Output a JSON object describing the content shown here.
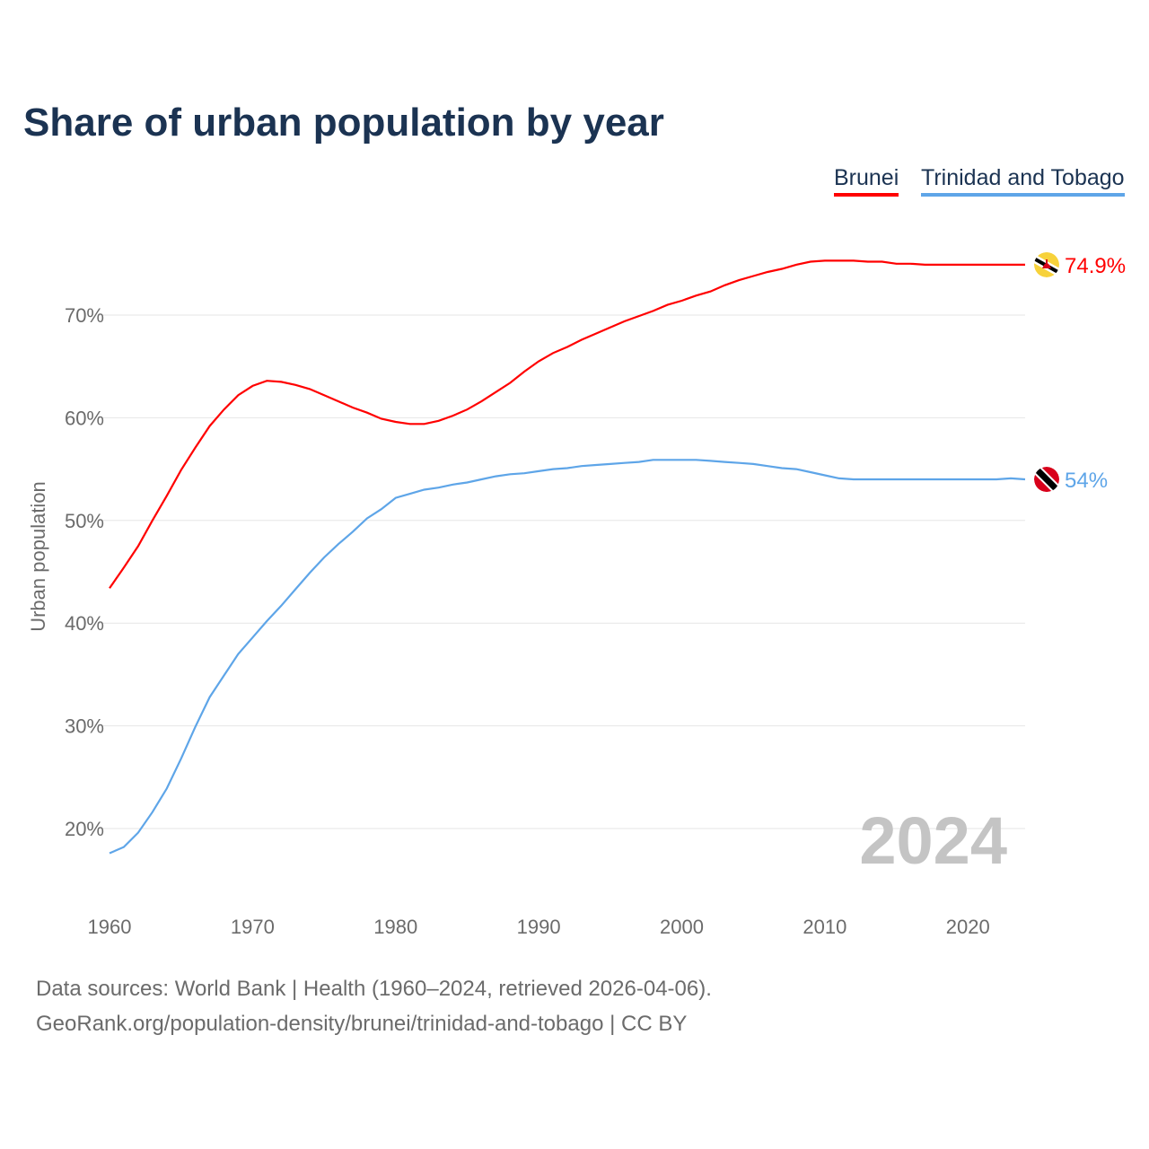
{
  "chart_data": {
    "type": "line",
    "title": "Share of urban population by year",
    "ylabel": "Urban population",
    "xlabel": "",
    "xlim": [
      1960,
      2024
    ],
    "ylim": [
      15,
      77
    ],
    "xticks": [
      1960,
      1970,
      1980,
      1990,
      2000,
      2010,
      2020
    ],
    "yticks": [
      {
        "v": 20,
        "label": "20%"
      },
      {
        "v": 30,
        "label": "30%"
      },
      {
        "v": 40,
        "label": "40%"
      },
      {
        "v": 50,
        "label": "50%"
      },
      {
        "v": 60,
        "label": "60%"
      },
      {
        "v": 70,
        "label": "70%"
      }
    ],
    "grid": true,
    "legend_position": "top-right",
    "year_label": "2024",
    "x": [
      1960,
      1961,
      1962,
      1963,
      1964,
      1965,
      1966,
      1967,
      1968,
      1969,
      1970,
      1971,
      1972,
      1973,
      1974,
      1975,
      1976,
      1977,
      1978,
      1979,
      1980,
      1981,
      1982,
      1983,
      1984,
      1985,
      1986,
      1987,
      1988,
      1989,
      1990,
      1991,
      1992,
      1993,
      1994,
      1995,
      1996,
      1997,
      1998,
      1999,
      2000,
      2001,
      2002,
      2003,
      2004,
      2005,
      2006,
      2007,
      2008,
      2009,
      2010,
      2011,
      2012,
      2013,
      2014,
      2015,
      2016,
      2017,
      2018,
      2019,
      2020,
      2021,
      2022,
      2023,
      2024
    ],
    "series": [
      {
        "name": "Brunei",
        "color": "#ff0000",
        "end_label": "74.9%",
        "flag": "brunei-flag",
        "values": [
          43.4,
          45.4,
          47.5,
          50.0,
          52.4,
          54.9,
          57.1,
          59.2,
          60.8,
          62.2,
          63.1,
          63.6,
          63.5,
          63.2,
          62.8,
          62.2,
          61.6,
          61.0,
          60.5,
          59.9,
          59.6,
          59.4,
          59.4,
          59.7,
          60.2,
          60.8,
          61.6,
          62.5,
          63.4,
          64.5,
          65.5,
          66.3,
          66.9,
          67.6,
          68.2,
          68.8,
          69.4,
          69.9,
          70.4,
          71.0,
          71.4,
          71.9,
          72.3,
          72.9,
          73.4,
          73.8,
          74.2,
          74.5,
          74.9,
          75.2,
          75.3,
          75.3,
          75.3,
          75.2,
          75.2,
          75.0,
          75.0,
          74.9,
          74.9,
          74.9,
          74.9,
          74.9,
          74.9,
          74.9,
          74.9
        ]
      },
      {
        "name": "Trinidad and Tobago",
        "color": "#5ea5e8",
        "end_label": "54%",
        "flag": "trinidad-and-tobago-flag",
        "values": [
          17.6,
          18.2,
          19.6,
          21.6,
          23.9,
          26.8,
          29.9,
          32.8,
          34.9,
          37.0,
          38.6,
          40.2,
          41.7,
          43.3,
          44.9,
          46.4,
          47.7,
          48.9,
          50.2,
          51.1,
          52.2,
          52.6,
          53.0,
          53.2,
          53.5,
          53.7,
          54.0,
          54.3,
          54.5,
          54.6,
          54.8,
          55.0,
          55.1,
          55.3,
          55.4,
          55.5,
          55.6,
          55.7,
          55.9,
          55.9,
          55.9,
          55.9,
          55.8,
          55.7,
          55.6,
          55.5,
          55.3,
          55.1,
          55.0,
          54.7,
          54.4,
          54.1,
          54.0,
          54.0,
          54.0,
          54.0,
          54.0,
          54.0,
          54.0,
          54.0,
          54.0,
          54.0,
          54.0,
          54.1,
          54.0
        ]
      }
    ]
  },
  "footer": {
    "line1": "Data sources: World Bank | Health (1960–2024, retrieved 2026-04-06).",
    "line2": "GeoRank.org/population-density/brunei/trinidad-and-tobago | CC BY"
  }
}
